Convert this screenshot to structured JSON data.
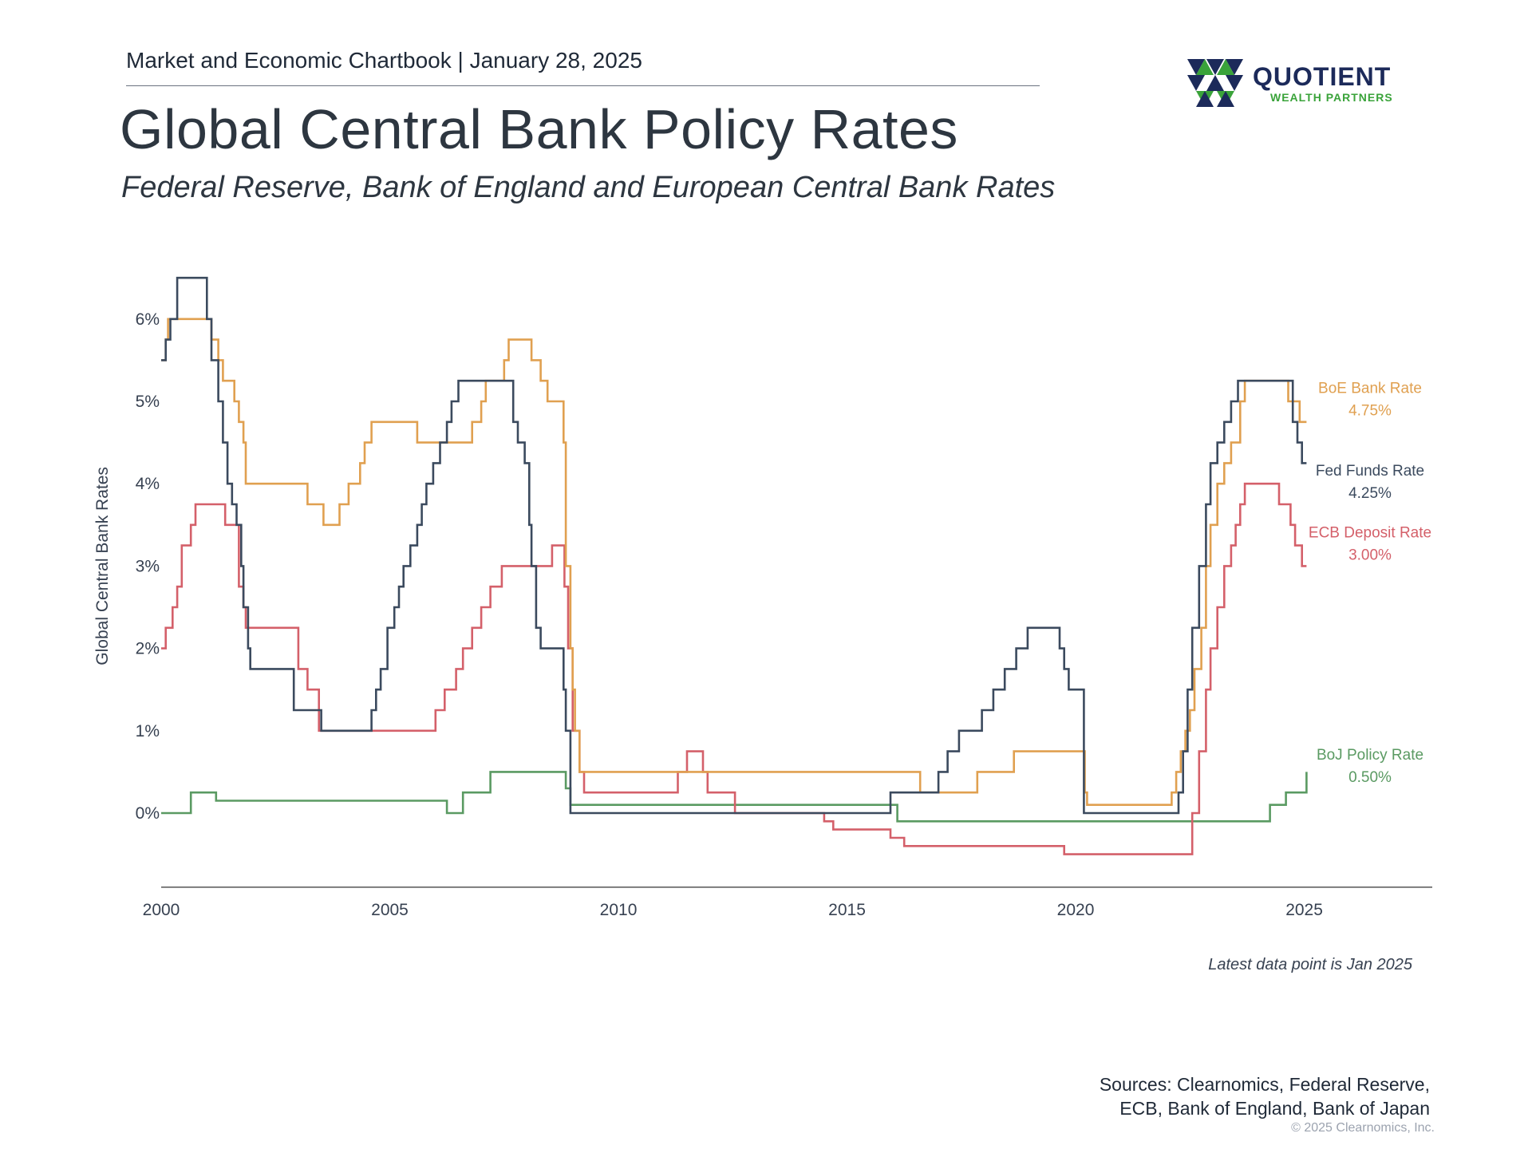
{
  "header": {
    "chartbook": "Market and Economic Chartbook | January 28, 2025",
    "title": "Global Central Bank Policy Rates",
    "subtitle": "Federal Reserve, Bank of England and European Central Bank Rates"
  },
  "logo": {
    "name": "QUOTIENT",
    "tagline": "WEALTH PARTNERS",
    "colors": {
      "navy": "#1c2a5a",
      "green": "#3aa33a"
    }
  },
  "footer": {
    "latest": "Latest data point is Jan 2025",
    "sources_line1": "Sources: Clearnomics, Federal Reserve,",
    "sources_line2": "ECB, Bank of England, Bank of Japan",
    "copyright": "© 2025 Clearnomics, Inc."
  },
  "chart_data": {
    "type": "line",
    "ylabel": "Global Central Bank Rates",
    "x_ticks": [
      "2000",
      "2005",
      "2010",
      "2015",
      "2020",
      "2025"
    ],
    "y_ticks": [
      "0%",
      "1%",
      "2%",
      "3%",
      "4%",
      "5%",
      "6%"
    ],
    "xlim": [
      2000,
      2027.8
    ],
    "ylim": [
      -0.9,
      6.5
    ],
    "grid": false,
    "legend": "end-of-line labels",
    "series": [
      {
        "name": "BoE Bank Rate",
        "end_label": "4.75%",
        "color": "#e0a050",
        "points": [
          [
            2000.0,
            5.5
          ],
          [
            2000.1,
            5.75
          ],
          [
            2000.15,
            6.0
          ],
          [
            2001.0,
            6.0
          ],
          [
            2001.1,
            5.75
          ],
          [
            2001.25,
            5.5
          ],
          [
            2001.35,
            5.25
          ],
          [
            2001.6,
            5.0
          ],
          [
            2001.7,
            4.75
          ],
          [
            2001.8,
            4.5
          ],
          [
            2001.85,
            4.0
          ],
          [
            2003.1,
            4.0
          ],
          [
            2003.2,
            3.75
          ],
          [
            2003.5,
            3.75
          ],
          [
            2003.55,
            3.5
          ],
          [
            2003.85,
            3.5
          ],
          [
            2003.9,
            3.75
          ],
          [
            2004.1,
            4.0
          ],
          [
            2004.35,
            4.25
          ],
          [
            2004.45,
            4.5
          ],
          [
            2004.6,
            4.75
          ],
          [
            2005.6,
            4.75
          ],
          [
            2005.6,
            4.5
          ],
          [
            2006.6,
            4.5
          ],
          [
            2006.8,
            4.75
          ],
          [
            2007.0,
            5.0
          ],
          [
            2007.1,
            5.25
          ],
          [
            2007.5,
            5.5
          ],
          [
            2007.6,
            5.75
          ],
          [
            2007.95,
            5.75
          ],
          [
            2008.1,
            5.5
          ],
          [
            2008.3,
            5.25
          ],
          [
            2008.45,
            5.0
          ],
          [
            2008.75,
            5.0
          ],
          [
            2008.8,
            4.5
          ],
          [
            2008.85,
            3.0
          ],
          [
            2008.95,
            2.0
          ],
          [
            2009.0,
            1.5
          ],
          [
            2009.05,
            1.0
          ],
          [
            2009.15,
            0.5
          ],
          [
            2016.6,
            0.5
          ],
          [
            2016.6,
            0.25
          ],
          [
            2017.8,
            0.25
          ],
          [
            2017.85,
            0.5
          ],
          [
            2018.6,
            0.5
          ],
          [
            2018.65,
            0.75
          ],
          [
            2020.2,
            0.75
          ],
          [
            2020.2,
            0.25
          ],
          [
            2020.25,
            0.1
          ],
          [
            2021.95,
            0.1
          ],
          [
            2022.1,
            0.25
          ],
          [
            2022.2,
            0.5
          ],
          [
            2022.3,
            0.75
          ],
          [
            2022.4,
            1.0
          ],
          [
            2022.5,
            1.25
          ],
          [
            2022.6,
            1.75
          ],
          [
            2022.75,
            2.25
          ],
          [
            2022.85,
            3.0
          ],
          [
            2022.95,
            3.5
          ],
          [
            2023.1,
            4.0
          ],
          [
            2023.25,
            4.25
          ],
          [
            2023.4,
            4.5
          ],
          [
            2023.6,
            5.0
          ],
          [
            2023.7,
            5.25
          ],
          [
            2024.6,
            5.25
          ],
          [
            2024.65,
            5.0
          ],
          [
            2024.85,
            5.0
          ],
          [
            2024.9,
            4.75
          ],
          [
            2025.05,
            4.75
          ]
        ]
      },
      {
        "name": "Fed Funds Rate",
        "end_label": "4.25%",
        "color": "#3b4a5e",
        "points": [
          [
            2000.0,
            5.5
          ],
          [
            2000.1,
            5.75
          ],
          [
            2000.2,
            6.0
          ],
          [
            2000.35,
            6.5
          ],
          [
            2000.95,
            6.5
          ],
          [
            2001.0,
            6.0
          ],
          [
            2001.1,
            5.5
          ],
          [
            2001.25,
            5.0
          ],
          [
            2001.35,
            4.5
          ],
          [
            2001.45,
            4.0
          ],
          [
            2001.55,
            3.75
          ],
          [
            2001.65,
            3.5
          ],
          [
            2001.75,
            3.0
          ],
          [
            2001.8,
            2.5
          ],
          [
            2001.9,
            2.0
          ],
          [
            2001.95,
            1.75
          ],
          [
            2002.85,
            1.75
          ],
          [
            2002.9,
            1.25
          ],
          [
            2003.45,
            1.25
          ],
          [
            2003.5,
            1.0
          ],
          [
            2004.5,
            1.0
          ],
          [
            2004.6,
            1.25
          ],
          [
            2004.7,
            1.5
          ],
          [
            2004.8,
            1.75
          ],
          [
            2004.95,
            2.25
          ],
          [
            2005.1,
            2.5
          ],
          [
            2005.2,
            2.75
          ],
          [
            2005.3,
            3.0
          ],
          [
            2005.45,
            3.25
          ],
          [
            2005.6,
            3.5
          ],
          [
            2005.7,
            3.75
          ],
          [
            2005.8,
            4.0
          ],
          [
            2005.95,
            4.25
          ],
          [
            2006.1,
            4.5
          ],
          [
            2006.25,
            4.75
          ],
          [
            2006.35,
            5.0
          ],
          [
            2006.5,
            5.25
          ],
          [
            2007.65,
            5.25
          ],
          [
            2007.7,
            4.75
          ],
          [
            2007.8,
            4.5
          ],
          [
            2007.95,
            4.25
          ],
          [
            2008.05,
            3.5
          ],
          [
            2008.1,
            3.0
          ],
          [
            2008.2,
            2.25
          ],
          [
            2008.3,
            2.0
          ],
          [
            2008.75,
            2.0
          ],
          [
            2008.8,
            1.5
          ],
          [
            2008.85,
            1.0
          ],
          [
            2008.95,
            0.0
          ],
          [
            2015.95,
            0.0
          ],
          [
            2015.95,
            0.25
          ],
          [
            2016.95,
            0.25
          ],
          [
            2017.0,
            0.5
          ],
          [
            2017.2,
            0.75
          ],
          [
            2017.45,
            1.0
          ],
          [
            2017.95,
            1.25
          ],
          [
            2018.2,
            1.5
          ],
          [
            2018.45,
            1.75
          ],
          [
            2018.7,
            2.0
          ],
          [
            2018.95,
            2.25
          ],
          [
            2019.55,
            2.25
          ],
          [
            2019.65,
            2.0
          ],
          [
            2019.75,
            1.75
          ],
          [
            2019.85,
            1.5
          ],
          [
            2020.15,
            1.5
          ],
          [
            2020.18,
            0.0
          ],
          [
            2022.2,
            0.0
          ],
          [
            2022.25,
            0.25
          ],
          [
            2022.35,
            0.75
          ],
          [
            2022.45,
            1.5
          ],
          [
            2022.55,
            2.25
          ],
          [
            2022.7,
            3.0
          ],
          [
            2022.85,
            3.75
          ],
          [
            2022.95,
            4.25
          ],
          [
            2023.1,
            4.5
          ],
          [
            2023.25,
            4.75
          ],
          [
            2023.4,
            5.0
          ],
          [
            2023.55,
            5.25
          ],
          [
            2024.7,
            5.25
          ],
          [
            2024.75,
            4.75
          ],
          [
            2024.85,
            4.5
          ],
          [
            2024.95,
            4.25
          ],
          [
            2025.05,
            4.25
          ]
        ]
      },
      {
        "name": "ECB Deposit Rate",
        "end_label": "3.00%",
        "color": "#d4606a",
        "points": [
          [
            2000.0,
            2.0
          ],
          [
            2000.1,
            2.25
          ],
          [
            2000.25,
            2.5
          ],
          [
            2000.35,
            2.75
          ],
          [
            2000.45,
            3.25
          ],
          [
            2000.65,
            3.5
          ],
          [
            2000.75,
            3.75
          ],
          [
            2001.35,
            3.75
          ],
          [
            2001.4,
            3.5
          ],
          [
            2001.65,
            3.5
          ],
          [
            2001.7,
            2.75
          ],
          [
            2001.8,
            2.5
          ],
          [
            2001.85,
            2.25
          ],
          [
            2002.95,
            2.25
          ],
          [
            2003.0,
            1.75
          ],
          [
            2003.2,
            1.5
          ],
          [
            2003.45,
            1.0
          ],
          [
            2005.95,
            1.0
          ],
          [
            2006.0,
            1.25
          ],
          [
            2006.2,
            1.5
          ],
          [
            2006.45,
            1.75
          ],
          [
            2006.6,
            2.0
          ],
          [
            2006.8,
            2.25
          ],
          [
            2007.0,
            2.5
          ],
          [
            2007.2,
            2.75
          ],
          [
            2007.45,
            3.0
          ],
          [
            2008.5,
            3.0
          ],
          [
            2008.55,
            3.25
          ],
          [
            2008.8,
            3.25
          ],
          [
            2008.82,
            2.75
          ],
          [
            2008.9,
            2.0
          ],
          [
            2009.0,
            1.0
          ],
          [
            2009.15,
            0.5
          ],
          [
            2009.25,
            0.25
          ],
          [
            2011.25,
            0.25
          ],
          [
            2011.3,
            0.5
          ],
          [
            2011.5,
            0.75
          ],
          [
            2011.8,
            0.75
          ],
          [
            2011.85,
            0.5
          ],
          [
            2011.95,
            0.25
          ],
          [
            2012.5,
            0.25
          ],
          [
            2012.55,
            0.0
          ],
          [
            2014.45,
            0.0
          ],
          [
            2014.5,
            -0.1
          ],
          [
            2014.7,
            -0.2
          ],
          [
            2015.9,
            -0.2
          ],
          [
            2015.95,
            -0.3
          ],
          [
            2016.2,
            -0.3
          ],
          [
            2016.25,
            -0.4
          ],
          [
            2019.7,
            -0.4
          ],
          [
            2019.75,
            -0.5
          ],
          [
            2022.5,
            -0.5
          ],
          [
            2022.55,
            0.0
          ],
          [
            2022.7,
            0.75
          ],
          [
            2022.85,
            1.5
          ],
          [
            2022.95,
            2.0
          ],
          [
            2023.1,
            2.5
          ],
          [
            2023.25,
            3.0
          ],
          [
            2023.4,
            3.25
          ],
          [
            2023.5,
            3.5
          ],
          [
            2023.6,
            3.75
          ],
          [
            2023.7,
            4.0
          ],
          [
            2024.4,
            4.0
          ],
          [
            2024.45,
            3.75
          ],
          [
            2024.7,
            3.5
          ],
          [
            2024.8,
            3.25
          ],
          [
            2024.95,
            3.0
          ],
          [
            2025.05,
            3.0
          ]
        ]
      },
      {
        "name": "BoJ Policy Rate",
        "end_label": "0.50%",
        "color": "#5a9a62",
        "points": [
          [
            2000.0,
            0.0
          ],
          [
            2000.6,
            0.0
          ],
          [
            2000.65,
            0.25
          ],
          [
            2001.15,
            0.25
          ],
          [
            2001.2,
            0.15
          ],
          [
            2006.2,
            0.15
          ],
          [
            2006.25,
            0.0
          ],
          [
            2006.55,
            0.0
          ],
          [
            2006.6,
            0.25
          ],
          [
            2007.15,
            0.25
          ],
          [
            2007.2,
            0.5
          ],
          [
            2008.8,
            0.5
          ],
          [
            2008.85,
            0.3
          ],
          [
            2008.95,
            0.1
          ],
          [
            2016.05,
            0.1
          ],
          [
            2016.1,
            -0.1
          ],
          [
            2024.2,
            -0.1
          ],
          [
            2024.25,
            0.1
          ],
          [
            2024.55,
            0.1
          ],
          [
            2024.6,
            0.25
          ],
          [
            2025.0,
            0.25
          ],
          [
            2025.05,
            0.5
          ]
        ]
      }
    ]
  }
}
